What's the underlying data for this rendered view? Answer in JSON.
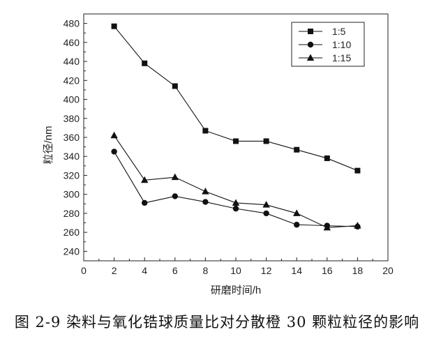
{
  "caption": "图 2-9  染料与氧化锆球质量比对分散橙 30 颗粒粒径的影响",
  "chart_data": {
    "type": "line",
    "title": "",
    "xlabel": "研磨时间/h",
    "ylabel": "粒径/nm",
    "xlim": [
      0,
      20
    ],
    "ylim": [
      230,
      490
    ],
    "x_ticks": [
      0,
      2,
      4,
      6,
      8,
      10,
      12,
      14,
      16,
      18,
      20
    ],
    "y_ticks": [
      240,
      260,
      280,
      300,
      320,
      340,
      360,
      380,
      400,
      420,
      440,
      460,
      480
    ],
    "grid": false,
    "legend_position": "top-right",
    "x": [
      2,
      4,
      6,
      8,
      10,
      12,
      14,
      16,
      18
    ],
    "series": [
      {
        "name": "1:5",
        "marker": "square",
        "values": [
          477,
          438,
          414,
          367,
          356,
          356,
          347,
          338,
          325
        ]
      },
      {
        "name": "1:10",
        "marker": "circle",
        "values": [
          345,
          291,
          298,
          292,
          285,
          280,
          268,
          267,
          266
        ]
      },
      {
        "name": "1:15",
        "marker": "triangle",
        "values": [
          362,
          315,
          318,
          303,
          291,
          289,
          280,
          265,
          267
        ]
      }
    ]
  }
}
